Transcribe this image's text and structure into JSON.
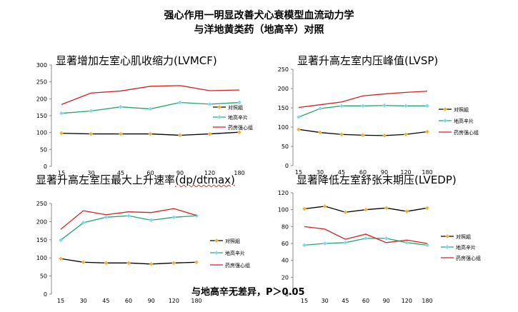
{
  "title_line1": "强心作用一明显改善犬心衰模型血流动力学",
  "title_line2": "与洋地黄类药（地高辛）对照",
  "footnote": "与地高辛无差异，P＞0.05",
  "colors": {
    "control": "#000000",
    "digoxin": "#22a66a",
    "yaofang": "#d42020",
    "control_marker": "#f2b134",
    "digoxin_marker": "#7fd7f0",
    "axis": "#888888"
  },
  "chart_data": [
    {
      "type": "line",
      "title": "显著增加左室心肌收缩力(LVMCF)",
      "categories": [
        "15",
        "30",
        "45",
        "60",
        "90",
        "120",
        "180"
      ],
      "ylim": [
        0,
        300
      ],
      "yticks": [
        0,
        50,
        100,
        150,
        200,
        250,
        300
      ],
      "legend_position": "right",
      "series": [
        {
          "name": "对照組",
          "values": [
            98,
            96,
            96,
            96,
            92,
            96,
            101
          ]
        },
        {
          "name": "地高辛片",
          "values": [
            157,
            164,
            176,
            170,
            189,
            184,
            189
          ]
        },
        {
          "name": "药房强心组",
          "values": [
            183,
            217,
            223,
            237,
            239,
            224,
            226
          ]
        }
      ]
    },
    {
      "type": "line",
      "title": "显著升高左室内压峰值(LVSP)",
      "categories": [
        "15",
        "30",
        "45",
        "60",
        "90",
        "120",
        "180"
      ],
      "ylim": [
        0,
        250
      ],
      "yticks": [
        0,
        50,
        100,
        150,
        200,
        250
      ],
      "legend_position": "right",
      "series": [
        {
          "name": "对照組",
          "values": [
            94,
            86,
            81,
            79,
            78,
            81,
            88
          ]
        },
        {
          "name": "地高辛片",
          "values": [
            126,
            148,
            155,
            155,
            156,
            155,
            155
          ]
        },
        {
          "name": "药房强心组",
          "values": [
            151,
            158,
            165,
            181,
            186,
            190,
            193
          ]
        }
      ]
    },
    {
      "type": "line",
      "title": "显著升高左室压最大上升速率",
      "title_suffix": "(dp/dtmax)",
      "categories": [
        "15",
        "30",
        "45",
        "60",
        "90",
        "120",
        "180"
      ],
      "ylim": [
        0,
        250
      ],
      "yticks": [
        0,
        50,
        100,
        150,
        200,
        250
      ],
      "legend_position": "right",
      "series": [
        {
          "name": "对照組",
          "values": [
            98,
            88,
            86,
            86,
            83,
            86,
            88
          ]
        },
        {
          "name": "地高辛片",
          "values": [
            149,
            197,
            212,
            216,
            204,
            212,
            216
          ]
        },
        {
          "name": "药房强心组",
          "values": [
            179,
            230,
            219,
            227,
            225,
            236,
            217
          ]
        }
      ]
    },
    {
      "type": "line",
      "title": "显著降低左室舒张末期压(LVEDP)",
      "categories": [
        "15",
        "30",
        "45",
        "60",
        "90",
        "120",
        "180"
      ],
      "ylim": [
        0,
        120
      ],
      "yticks": [
        0,
        20,
        40,
        60,
        80,
        100,
        120
      ],
      "legend_position": "right",
      "series": [
        {
          "name": "对照組",
          "values": [
            101,
            104,
            97,
            100,
            102,
            98,
            102
          ]
        },
        {
          "name": "地高辛片",
          "values": [
            58,
            60,
            61,
            66,
            66,
            61,
            58
          ]
        },
        {
          "name": "药房强心组",
          "values": [
            80,
            77,
            65,
            71,
            61,
            64,
            60
          ]
        }
      ]
    }
  ]
}
